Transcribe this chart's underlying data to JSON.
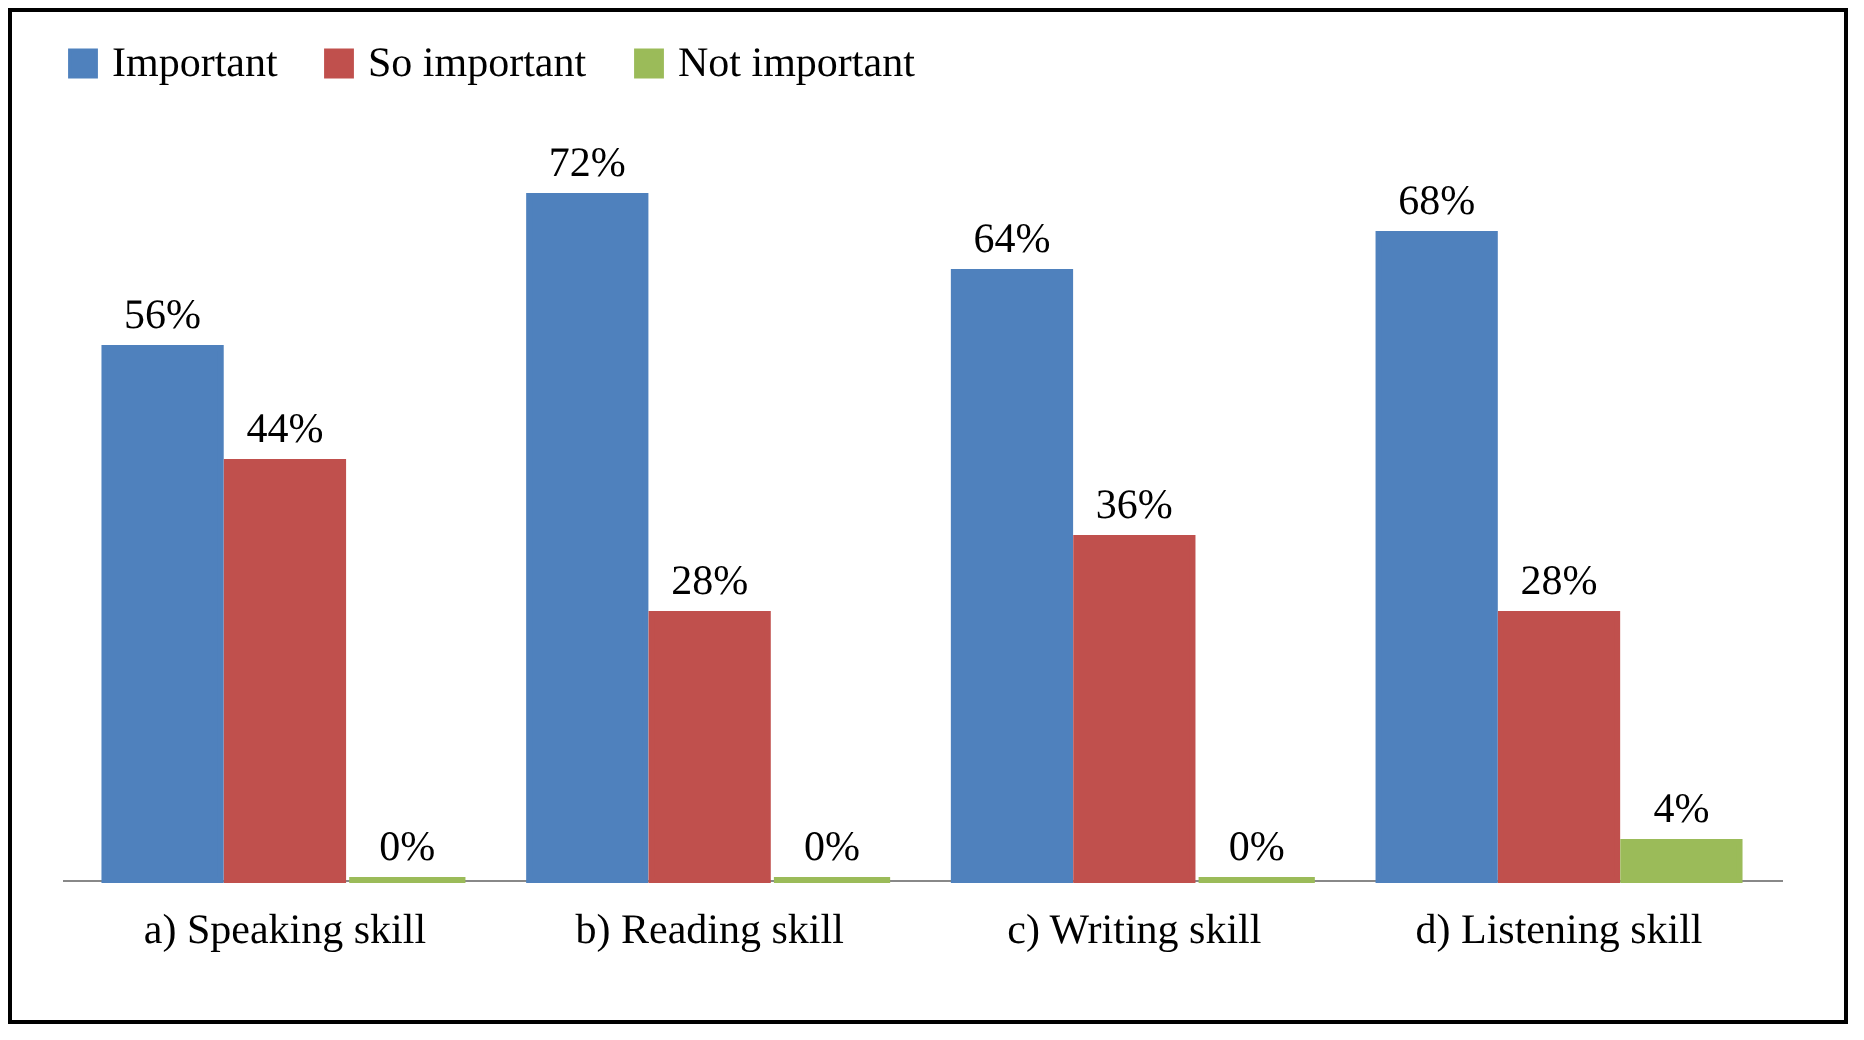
{
  "chart_data": {
    "type": "bar",
    "categories": [
      "a) Speaking skill",
      "b) Reading skill",
      "c) Writing skill",
      "d) Listening skill"
    ],
    "series": [
      {
        "name": "Important",
        "color": "#4f81bd",
        "values": [
          56,
          72,
          64,
          68
        ],
        "value_labels": [
          "56%",
          "72%",
          "64%",
          "68%"
        ]
      },
      {
        "name": "So important",
        "color": "#c0504d",
        "values": [
          44,
          28,
          36,
          28
        ],
        "value_labels": [
          "44%",
          "28%",
          "36%",
          "28%"
        ]
      },
      {
        "name": "Not important",
        "color": "#9bbb59",
        "values": [
          0,
          0,
          0,
          4
        ],
        "value_labels": [
          "0%",
          "0%",
          "0%",
          "4%"
        ]
      }
    ],
    "legend": "top"
  }
}
